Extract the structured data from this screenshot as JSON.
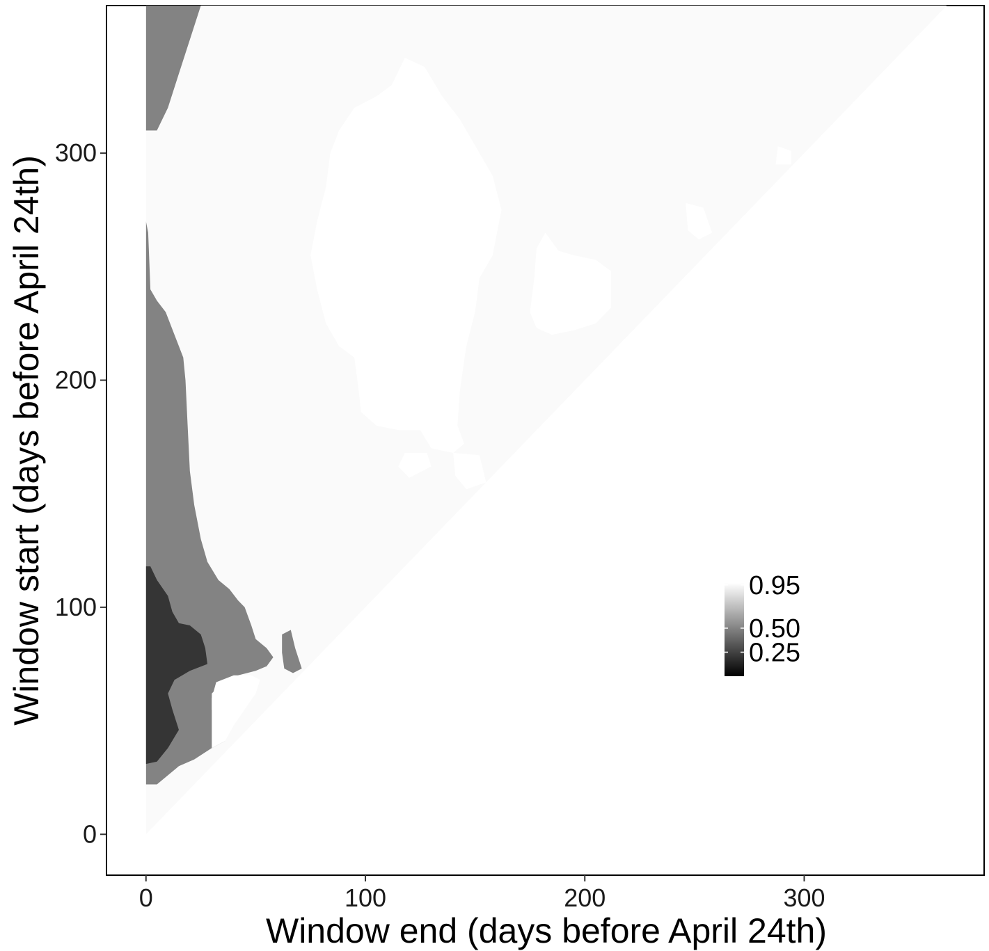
{
  "chart_data": {
    "type": "heatmap",
    "title": "",
    "xlabel": "Window end (days before April 24th)",
    "ylabel": "Window start (days before April 24th)",
    "xlim": [
      -18,
      382
    ],
    "ylim": [
      -18,
      365
    ],
    "x_ticks": [
      0,
      100,
      200,
      300
    ],
    "y_ticks": [
      0,
      100,
      200,
      300
    ],
    "grid": false,
    "colorscale": {
      "low_color": "#000000",
      "high_color": "#ffffff",
      "limits": [
        0.0,
        0.97
      ],
      "breaks": [
        0.25,
        0.5,
        0.95
      ],
      "break_labels": [
        "0.25",
        "0.50",
        "0.95"
      ],
      "legend_position": "inside-right"
    },
    "domain_constraint": "window end <= window start; start and end range 0–365",
    "background_value": 0.95,
    "regions": [
      {
        "value": 0.5,
        "shape": "left band of window starts above roughly 20 days with window end near zero",
        "vertices": [
          [
            0,
            22
          ],
          [
            5,
            22
          ],
          [
            10,
            26
          ],
          [
            15,
            30
          ],
          [
            22,
            33
          ],
          [
            30,
            38
          ],
          [
            36,
            41
          ],
          [
            32,
            46
          ],
          [
            30,
            55
          ],
          [
            30,
            62
          ],
          [
            35,
            67
          ],
          [
            42,
            70
          ],
          [
            50,
            72
          ],
          [
            55,
            74
          ],
          [
            58,
            78
          ],
          [
            55,
            82
          ],
          [
            50,
            86
          ],
          [
            48,
            92
          ],
          [
            45,
            100
          ],
          [
            42,
            103
          ],
          [
            38,
            108
          ],
          [
            33,
            112
          ],
          [
            28,
            120
          ],
          [
            25,
            130
          ],
          [
            22,
            145
          ],
          [
            20,
            160
          ],
          [
            19,
            180
          ],
          [
            18,
            200
          ],
          [
            17,
            210
          ],
          [
            13,
            220
          ],
          [
            9,
            230
          ],
          [
            5,
            235
          ],
          [
            2,
            240
          ],
          [
            1,
            265
          ],
          [
            0,
            270
          ],
          [
            0,
            365
          ],
          [
            25,
            365
          ],
          [
            20,
            350
          ],
          [
            15,
            335
          ],
          [
            10,
            320
          ],
          [
            5,
            310
          ],
          [
            0,
            310
          ]
        ]
      },
      {
        "value": 0.5,
        "shape": "small island",
        "vertices": [
          [
            62,
            88
          ],
          [
            66,
            90
          ],
          [
            68,
            82
          ],
          [
            71,
            73
          ],
          [
            67,
            71
          ],
          [
            63,
            73
          ],
          [
            62,
            80
          ]
        ]
      },
      {
        "value": 0.2,
        "shape": "dark patch at low window end",
        "vertices": [
          [
            0,
            31
          ],
          [
            5,
            32
          ],
          [
            10,
            38
          ],
          [
            15,
            46
          ],
          [
            12,
            55
          ],
          [
            10,
            62
          ],
          [
            13,
            68
          ],
          [
            20,
            72
          ],
          [
            28,
            75
          ],
          [
            27,
            82
          ],
          [
            25,
            88
          ],
          [
            20,
            92
          ],
          [
            15,
            93
          ],
          [
            12,
            98
          ],
          [
            10,
            105
          ],
          [
            5,
            112
          ],
          [
            2,
            118
          ],
          [
            0,
            118
          ]
        ]
      },
      {
        "value": 0.97,
        "shape": "large bright blob",
        "vertices": [
          [
            118,
            342
          ],
          [
            127,
            338
          ],
          [
            135,
            325
          ],
          [
            143,
            315
          ],
          [
            152,
            300
          ],
          [
            158,
            290
          ],
          [
            162,
            275
          ],
          [
            158,
            255
          ],
          [
            152,
            245
          ],
          [
            150,
            230
          ],
          [
            146,
            215
          ],
          [
            143,
            195
          ],
          [
            142,
            180
          ],
          [
            145,
            172
          ],
          [
            140,
            168
          ],
          [
            130,
            170
          ],
          [
            125,
            178
          ],
          [
            115,
            178
          ],
          [
            105,
            180
          ],
          [
            98,
            186
          ],
          [
            97,
            195
          ],
          [
            95,
            210
          ],
          [
            88,
            215
          ],
          [
            82,
            225
          ],
          [
            78,
            240
          ],
          [
            75,
            255
          ],
          [
            78,
            270
          ],
          [
            82,
            285
          ],
          [
            84,
            300
          ],
          [
            88,
            310
          ],
          [
            95,
            320
          ],
          [
            105,
            325
          ],
          [
            112,
            330
          ]
        ]
      },
      {
        "value": 0.97,
        "shape": "bright blob",
        "vertices": [
          [
            182,
            265
          ],
          [
            188,
            257
          ],
          [
            195,
            255
          ],
          [
            205,
            253
          ],
          [
            212,
            248
          ],
          [
            212,
            232
          ],
          [
            205,
            225
          ],
          [
            195,
            222
          ],
          [
            185,
            220
          ],
          [
            178,
            223
          ],
          [
            175,
            230
          ],
          [
            177,
            245
          ],
          [
            178,
            258
          ]
        ]
      },
      {
        "value": 0.97,
        "shape": "small bright blob",
        "vertices": [
          [
            246,
            278
          ],
          [
            254,
            276
          ],
          [
            258,
            265
          ],
          [
            252,
            262
          ],
          [
            247,
            266
          ]
        ]
      },
      {
        "value": 0.97,
        "shape": "small bright blob",
        "vertices": [
          [
            288,
            303
          ],
          [
            294,
            301
          ],
          [
            294,
            295
          ],
          [
            287,
            295
          ]
        ]
      },
      {
        "value": 0.97,
        "shape": "bright region near lower diagonal",
        "vertices": [
          [
            30,
            38
          ],
          [
            36,
            41
          ],
          [
            40,
            48
          ],
          [
            45,
            55
          ],
          [
            50,
            62
          ],
          [
            52,
            68
          ],
          [
            48,
            70
          ],
          [
            40,
            70
          ],
          [
            32,
            67
          ],
          [
            30,
            60
          ],
          [
            30,
            50
          ]
        ]
      },
      {
        "value": 0.97,
        "shape": "small bright blob",
        "vertices": [
          [
            118,
            168
          ],
          [
            128,
            168
          ],
          [
            130,
            162
          ],
          [
            120,
            157
          ],
          [
            115,
            162
          ]
        ]
      },
      {
        "value": 0.97,
        "shape": "small bright blob",
        "vertices": [
          [
            140,
            168
          ],
          [
            152,
            167
          ],
          [
            155,
            155
          ],
          [
            146,
            152
          ],
          [
            141,
            158
          ]
        ]
      }
    ]
  }
}
